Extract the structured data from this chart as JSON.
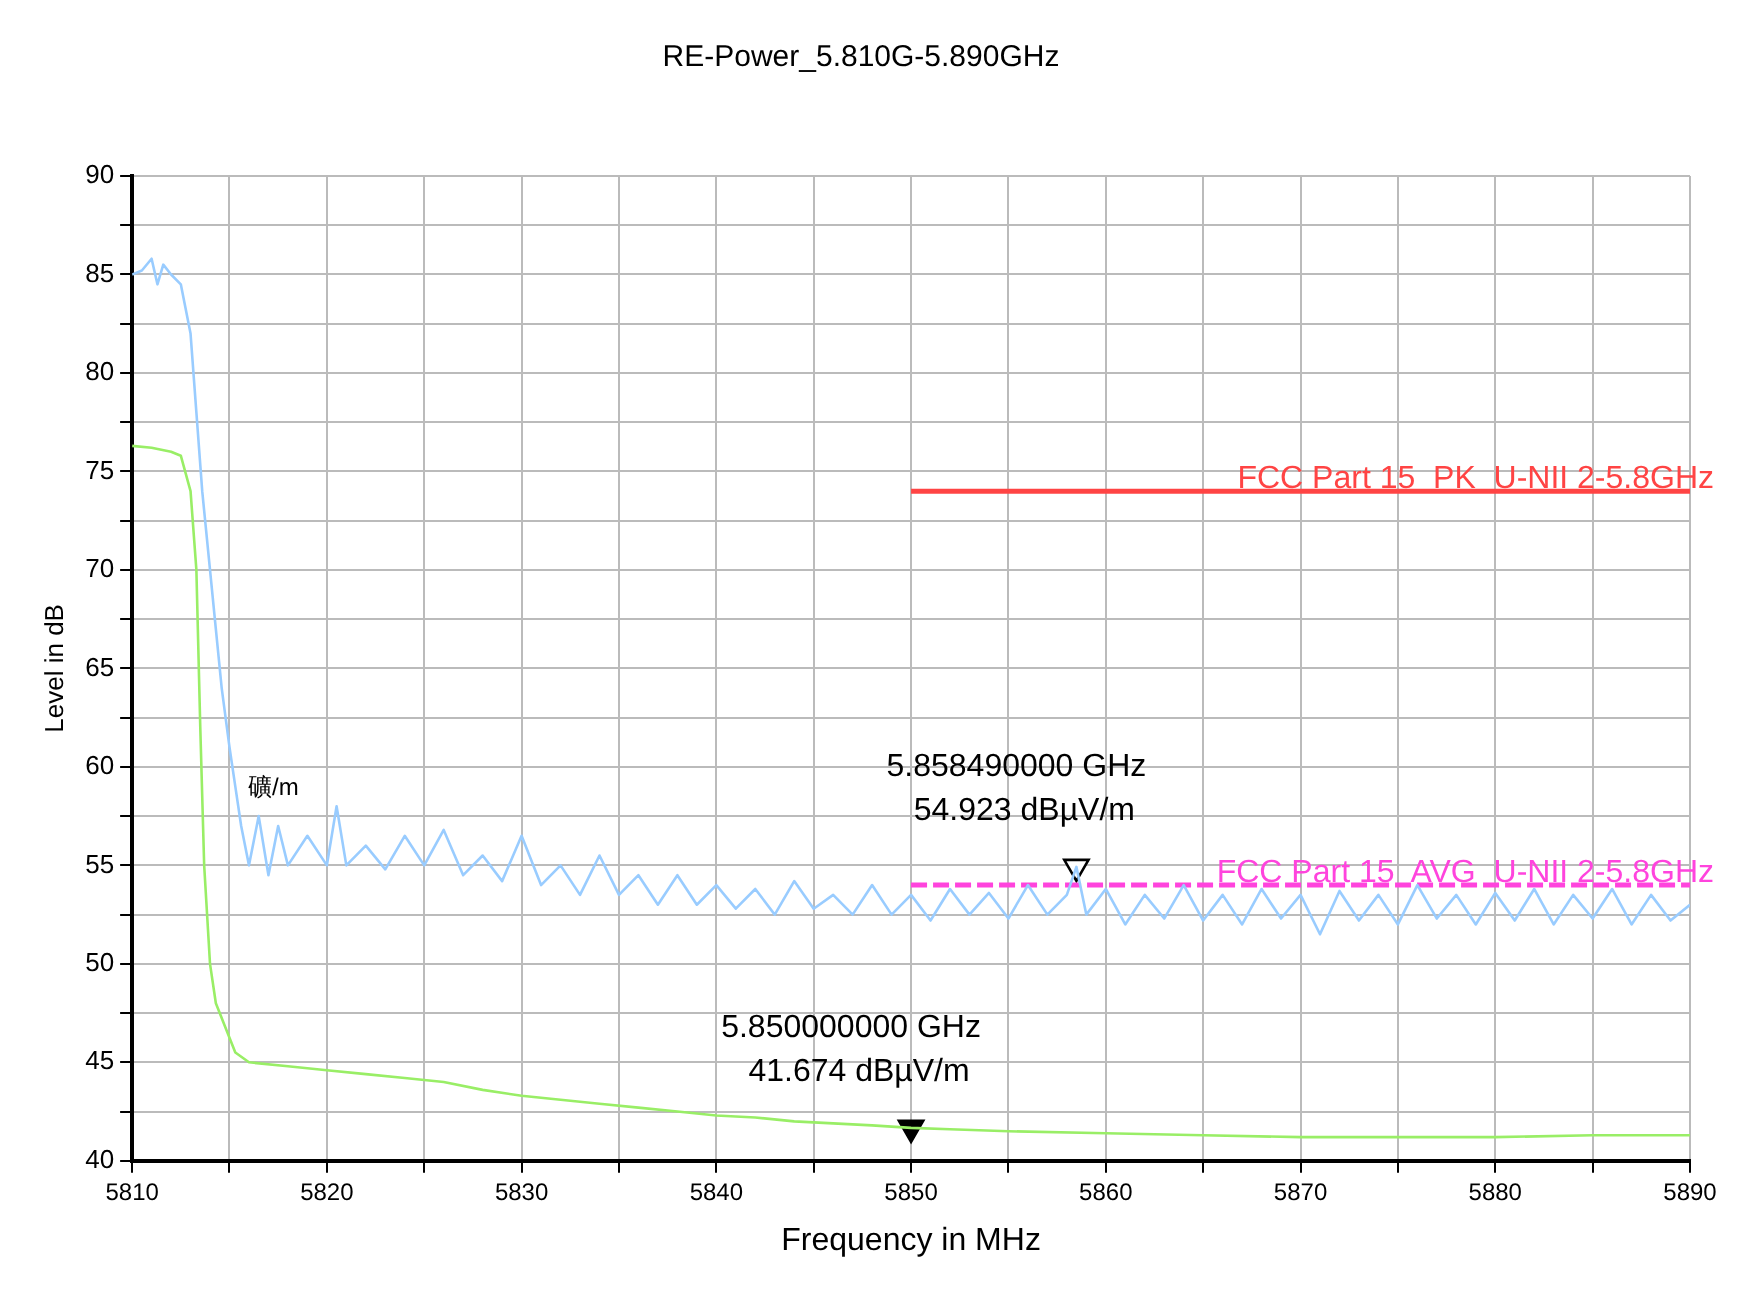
{
  "chart_data": {
    "type": "line",
    "title": "RE-Power_5.810G-5.890GHz",
    "xlabel": "Frequency in MHz",
    "ylabel": "Level in dB",
    "xlim": [
      5810,
      5890
    ],
    "xticks": [
      5810,
      {
        "value": 5815,
        "label": null
      },
      5820,
      {
        "value": 5825,
        "label": null
      },
      5830,
      {
        "value": 5835,
        "label": null
      },
      5840,
      {
        "value": 5845,
        "label": null
      },
      5850,
      {
        "value": 5855,
        "label": null
      },
      5860,
      {
        "value": 5865,
        "label": null
      },
      5870,
      {
        "value": 5875,
        "label": null
      },
      5880,
      {
        "value": 5885,
        "label": null
      },
      5890
    ],
    "ylim": [
      40,
      90
    ],
    "yticks": [
      40,
      {
        "value": 42.5,
        "label": null
      },
      45,
      {
        "value": 47.5,
        "label": null
      },
      50,
      {
        "value": 52.5,
        "label": null
      },
      55,
      {
        "value": 57.5,
        "label": null
      },
      60,
      {
        "value": 62.5,
        "label": null
      },
      65,
      {
        "value": 67.5,
        "label": null
      },
      70,
      {
        "value": 72.5,
        "label": null
      },
      75,
      {
        "value": 77.5,
        "label": null
      },
      80,
      {
        "value": 82.5,
        "label": null
      },
      85,
      {
        "value": 87.5,
        "label": null
      },
      90
    ],
    "grid": true,
    "legend": false,
    "marker": "none",
    "line_style": "solid",
    "series": [
      {
        "color": "#99ccff",
        "x": [
          5810,
          5810.5,
          5811,
          5811.3,
          5811.6,
          5812,
          5812.5,
          5813,
          5813.3,
          5813.6,
          5814,
          5814.3,
          5814.6,
          5815,
          5815.3,
          5815.6,
          5816,
          5816.5,
          5817,
          5817.5,
          5818,
          5819,
          5820,
          5820.5,
          5821,
          5822,
          5823,
          5824,
          5825,
          5826,
          5827,
          5828,
          5829,
          5830,
          5831,
          5832,
          5833,
          5834,
          5835,
          5836,
          5837,
          5838,
          5839,
          5840,
          5841,
          5842,
          5843,
          5844,
          5845,
          5846,
          5847,
          5848,
          5849,
          5850,
          5851,
          5852,
          5853,
          5854,
          5855,
          5856,
          5857,
          5858,
          5858.49,
          5859,
          5860,
          5861,
          5862,
          5863,
          5864,
          5865,
          5866,
          5867,
          5868,
          5869,
          5870,
          5871,
          5872,
          5873,
          5874,
          5875,
          5876,
          5877,
          5878,
          5879,
          5880,
          5881,
          5882,
          5883,
          5884,
          5885,
          5886,
          5887,
          5888,
          5889,
          5890
        ],
        "values": [
          85,
          85.2,
          85.8,
          84.5,
          85.5,
          85,
          84.5,
          82,
          78,
          74,
          70,
          67,
          64,
          61,
          59,
          57,
          55,
          57.5,
          54.5,
          57,
          55,
          56.5,
          55,
          58,
          55,
          56,
          54.8,
          56.5,
          55,
          56.8,
          54.5,
          55.5,
          54.2,
          56.5,
          54,
          55,
          53.5,
          55.5,
          53.5,
          54.5,
          53,
          54.5,
          53,
          54,
          52.8,
          53.8,
          52.5,
          54.2,
          52.8,
          53.5,
          52.5,
          54,
          52.5,
          53.5,
          52.2,
          53.8,
          52.5,
          53.6,
          52.3,
          54,
          52.5,
          53.5,
          54.923,
          52.5,
          53.8,
          52,
          53.5,
          52.3,
          54,
          52.2,
          53.5,
          52,
          53.8,
          52.3,
          53.5,
          51.5,
          53.7,
          52.2,
          53.5,
          52,
          54,
          52.3,
          53.5,
          52,
          53.6,
          52.2,
          53.8,
          52,
          53.5,
          52.3,
          53.8,
          52,
          53.5,
          52.2,
          53
        ]
      },
      {
        "color": "#99ee66",
        "x": [
          5810,
          5811,
          5812,
          5812.5,
          5813,
          5813.3,
          5813.5,
          5813.7,
          5814,
          5814.3,
          5814.7,
          5815.3,
          5816,
          5818,
          5820,
          5822,
          5824,
          5826,
          5828,
          5830,
          5832,
          5834,
          5836,
          5838,
          5840,
          5842,
          5844,
          5846,
          5848,
          5850,
          5852,
          5855,
          5860,
          5865,
          5870,
          5875,
          5880,
          5885,
          5890
        ],
        "values": [
          76.3,
          76.2,
          76,
          75.8,
          74,
          70,
          62,
          55,
          50,
          48,
          47,
          45.5,
          45,
          44.8,
          44.6,
          44.4,
          44.2,
          44,
          43.6,
          43.3,
          43.1,
          42.9,
          42.7,
          42.5,
          42.3,
          42.2,
          42,
          41.9,
          41.8,
          41.674,
          41.6,
          41.5,
          41.4,
          41.3,
          41.2,
          41.2,
          41.2,
          41.3,
          41.3
        ]
      },
      {
        "name": "FCC Part 15  PK  U-NII 2-5.8GHz",
        "color": "#ff4444",
        "x": [
          5850,
          5890
        ],
        "values": [
          74,
          74
        ]
      },
      {
        "name": "FCC Part 15  AVG  U-NII 2-5.8GHz",
        "color": "#ff44dd",
        "x": [
          5850,
          5890
        ],
        "values": [
          54,
          54
        ],
        "line_style": "dashed"
      },
      {
        "type": "scatter",
        "color": "#000000",
        "marker": "triangle",
        "x": [
          5858.49
        ],
        "values": [
          54.923
        ]
      },
      {
        "type": "scatter",
        "color": "#000000",
        "marker": "triangle",
        "x": [
          5850
        ],
        "values": [
          41.674
        ]
      }
    ],
    "annotations": [
      {
        "text": "5.858490000 GHz\n54.923 dBµV/m",
        "x": 5858.49,
        "y": 54.923
      },
      {
        "text": "5.850000000 GHz\n41.674 dBµV/m",
        "x": 5850,
        "y": 41.674
      },
      "礦/m"
    ]
  }
}
